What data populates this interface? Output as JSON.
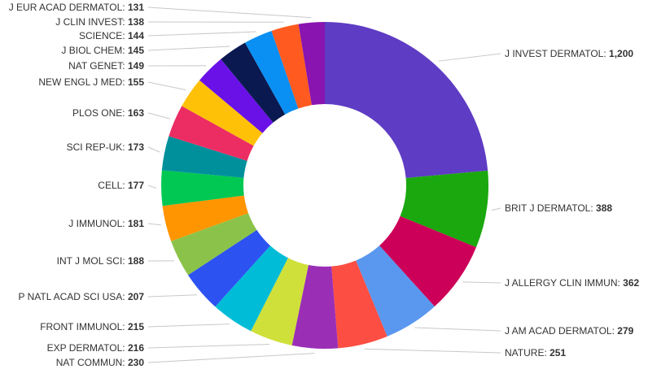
{
  "chart_data": {
    "type": "pie",
    "variant": "donut",
    "start_angle_deg": 0,
    "direction": "clockwise",
    "slices": [
      {
        "label": "J INVEST DERMATOL",
        "value": 1200,
        "value_text": "1,200",
        "color": "#5e3cc3"
      },
      {
        "label": "BRIT J DERMATOL",
        "value": 388,
        "value_text": "388",
        "color": "#1aa80e"
      },
      {
        "label": "J ALLERGY CLIN IMMUN",
        "value": 362,
        "value_text": "362",
        "color": "#cc0058"
      },
      {
        "label": "J AM ACAD DERMATOL",
        "value": 279,
        "value_text": "279",
        "color": "#5a97ef"
      },
      {
        "label": "NATURE",
        "value": 251,
        "value_text": "251",
        "color": "#fc4e42"
      },
      {
        "label": "NAT COMMUN",
        "value": 230,
        "value_text": "230",
        "color": "#9a2fb6"
      },
      {
        "label": "EXP DERMATOL",
        "value": 216,
        "value_text": "216",
        "color": "#cfe03b"
      },
      {
        "label": "FRONT IMMUNOL",
        "value": 215,
        "value_text": "215",
        "color": "#00bcd7"
      },
      {
        "label": "P NATL ACAD SCI USA",
        "value": 207,
        "value_text": "207",
        "color": "#2d52f2"
      },
      {
        "label": "INT J MOL SCI",
        "value": 188,
        "value_text": "188",
        "color": "#8bc34a"
      },
      {
        "label": "J IMMUNOL",
        "value": 181,
        "value_text": "181",
        "color": "#ff9500"
      },
      {
        "label": "CELL",
        "value": 177,
        "value_text": "177",
        "color": "#00c853"
      },
      {
        "label": "SCI REP-UK",
        "value": 173,
        "value_text": "173",
        "color": "#00909c"
      },
      {
        "label": "PLOS ONE",
        "value": 163,
        "value_text": "163",
        "color": "#ec2d63"
      },
      {
        "label": "NEW ENGL J MED",
        "value": 155,
        "value_text": "155",
        "color": "#ffc107"
      },
      {
        "label": "NAT GENET",
        "value": 149,
        "value_text": "149",
        "color": "#6a11e8"
      },
      {
        "label": "J BIOL CHEM",
        "value": 145,
        "value_text": "145",
        "color": "#0a1950"
      },
      {
        "label": "SCIENCE",
        "value": 144,
        "value_text": "144",
        "color": "#0a8ff2"
      },
      {
        "label": "J CLIN INVEST",
        "value": 138,
        "value_text": "138",
        "color": "#ff5a1f"
      },
      {
        "label": "J EUR ACAD DERMATOL",
        "value": 131,
        "value_text": "131",
        "color": "#8914b0"
      }
    ]
  }
}
